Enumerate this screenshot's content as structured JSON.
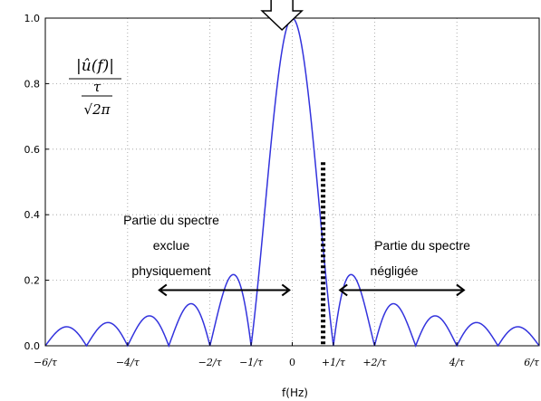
{
  "chart_data": {
    "type": "line",
    "xlabel": "f(Hz)",
    "ylabel_formula": {
      "numerator": "|û(f)|",
      "denominator_top": "τ",
      "denominator_bottom": "√2π"
    },
    "xlim": [
      -6,
      6
    ],
    "ylim": [
      0,
      1.0
    ],
    "grid": true,
    "x_ticks": [
      {
        "value": -6,
        "label": "−6/τ"
      },
      {
        "value": -4,
        "label": "−4/τ"
      },
      {
        "value": -2,
        "label": "−2/τ"
      },
      {
        "value": -1,
        "label": "−1/τ"
      },
      {
        "value": 0,
        "label": "0"
      },
      {
        "value": 1,
        "label": "+1/τ"
      },
      {
        "value": 2,
        "label": "+2/τ"
      },
      {
        "value": 4,
        "label": "4/τ"
      },
      {
        "value": 6,
        "label": "6/τ"
      }
    ],
    "y_ticks": [
      {
        "value": 0.0,
        "label": "0.0"
      },
      {
        "value": 0.2,
        "label": "0.2"
      },
      {
        "value": 0.4,
        "label": "0.4"
      },
      {
        "value": 0.6,
        "label": "0.6"
      },
      {
        "value": 0.8,
        "label": "0.8"
      },
      {
        "value": 1.0,
        "label": "1.0"
      }
    ],
    "series": [
      {
        "function": "abs(sinc(f))",
        "x_range": [
          -6,
          6
        ],
        "samples": 1200,
        "color": "#3333dd"
      }
    ],
    "annotations": {
      "excluded_region": {
        "lines": [
          "Partie du spectre",
          "exclue",
          "physiquement"
        ],
        "arrow_x": [
          -3.23,
          -0.07
        ],
        "arrow_y": 0.17
      },
      "neglected_region": {
        "lines": [
          "Partie du spectre",
          "négligée"
        ],
        "arrow_x": [
          1.16,
          4.17
        ],
        "arrow_y": 0.17
      },
      "cutoff_line": {
        "x": 0.75,
        "y_top": 0.56
      },
      "top_arrow": {
        "x": -0.25
      }
    }
  }
}
